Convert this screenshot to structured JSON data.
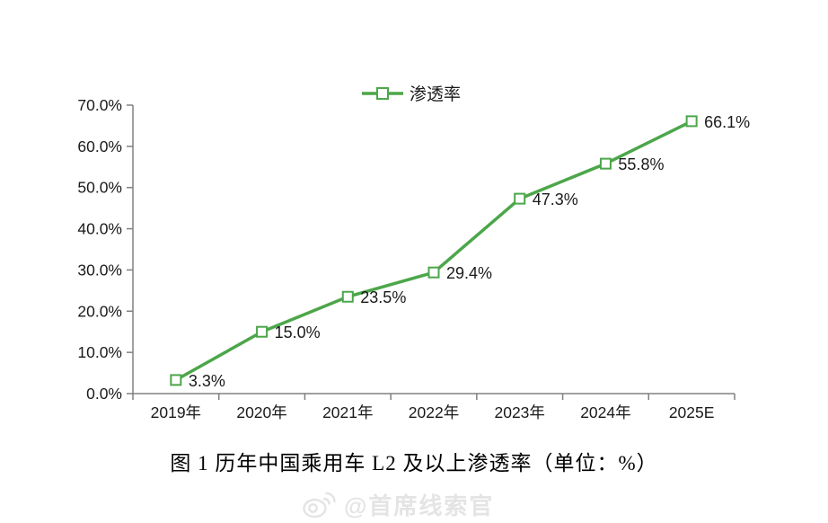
{
  "chart_data": {
    "type": "line",
    "categories": [
      "2019年",
      "2020年",
      "2021年",
      "2022年",
      "2023年",
      "2024年",
      "2025E"
    ],
    "series": [
      {
        "name": "渗透率",
        "values": [
          3.3,
          15.0,
          23.5,
          29.4,
          47.3,
          55.8,
          66.1
        ]
      }
    ],
    "data_labels": [
      "3.3%",
      "15.0%",
      "23.5%",
      "29.4%",
      "47.3%",
      "55.8%",
      "66.1%"
    ],
    "y_tick_labels": [
      "0.0%",
      "10.0%",
      "20.0%",
      "30.0%",
      "40.0%",
      "50.0%",
      "60.0%",
      "70.0%"
    ],
    "y_tick_values": [
      0,
      10,
      20,
      30,
      40,
      50,
      60,
      70
    ],
    "ylim": [
      0,
      70
    ],
    "grid": false,
    "legend_position": "top",
    "marker": "open-square",
    "colors": {
      "line": "#4CA64A",
      "marker_fill": "#ffffff",
      "axis": "#808080",
      "text": "#1a1a1a"
    }
  },
  "caption": "图 1  历年中国乘用车 L2 及以上渗透率（单位：%）",
  "watermark": {
    "icon": "weibo-icon",
    "text": "@首席线索官",
    "color": "#e4e4e4"
  }
}
